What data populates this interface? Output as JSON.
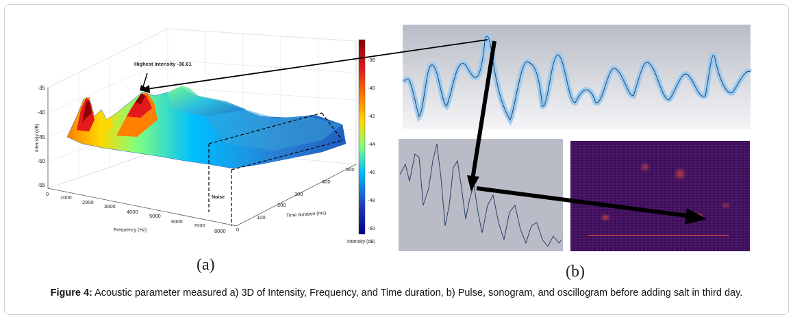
{
  "figure": {
    "caption_label": "Figure 4:",
    "caption_text": "Acoustic parameter measured a) 3D of Intensity, Frequency, and Time duration, b) Pulse, sonogram, and oscillogram before adding salt in third day.",
    "panel_a_label": "(a)",
    "panel_b_label": "(b)"
  },
  "panel_a": {
    "annotation_peak": "Highest Intensity -36.61",
    "annotation_noise": "Noise",
    "z_axis_label": "Intensity (dB)",
    "z_ticks": [
      "-35",
      "-40",
      "-45",
      "-50",
      "-55"
    ],
    "x_axis_label": "Frequency (Hz)",
    "x_ticks": [
      "0",
      "1000",
      "2000",
      "3000",
      "4000",
      "5000",
      "6000",
      "7000",
      "8000"
    ],
    "y_axis_label": "Time duration (ms)",
    "y_ticks": [
      "0",
      "100",
      "200",
      "300",
      "400",
      "500"
    ],
    "colorbar_label": "Intensity (dB)",
    "colorbar_ticks": [
      "-38",
      "-40",
      "-42",
      "-44",
      "-46",
      "-48",
      "-50"
    ],
    "colormap": [
      "#8b0000",
      "#e31a1c",
      "#ff7f00",
      "#ffd700",
      "#7fff7f",
      "#00bfff",
      "#1f3fbf",
      "#00008b"
    ]
  },
  "panel_b": {
    "oscillogram_bg": "#c9ccd4",
    "waveform_color": "#2c3e66",
    "waveform_fill": "#a9d2f2",
    "sonogram_bg": "#3a0f55",
    "sonogram_hot": "#ff3b2f"
  }
}
